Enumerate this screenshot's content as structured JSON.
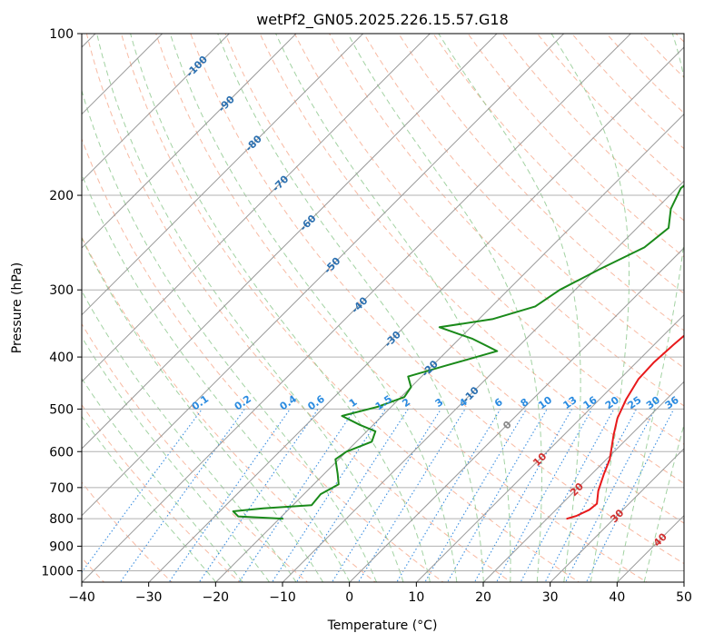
{
  "chart_data": {
    "type": "line",
    "title": "wetPf2_GN05.2025.226.15.57.G18",
    "xlabel": "Temperature (°C)",
    "ylabel": "Pressure (hPa)",
    "xlim": [
      -40,
      50
    ],
    "ylim": [
      1050,
      100
    ],
    "y_scale": "log",
    "grid": true,
    "x_ticks": [
      -40,
      -30,
      -20,
      -10,
      0,
      10,
      20,
      30,
      40,
      50
    ],
    "y_ticks": [
      100,
      200,
      300,
      400,
      500,
      600,
      700,
      800,
      900,
      1000
    ],
    "x_tick_labels": [
      "−40",
      "−30",
      "−20",
      "−10",
      "0",
      "10",
      "20",
      "30",
      "40",
      "50"
    ],
    "y_tick_labels": [
      "100",
      "200",
      "300",
      "400",
      "500",
      "600",
      "700",
      "800",
      "900",
      "1000"
    ],
    "colors": {
      "temperature": "#e8191b",
      "dewpoint": "#1a8a1a",
      "isotherm": "#999999",
      "dry_adiabat": "#f6a98c",
      "moist_adiabat": "#8bc78b",
      "mixing_ratio": "#3a8ee0",
      "isotherm_label": "#2a6fb0",
      "mixing_ratio_label": "#2a8be0",
      "adiabat_label": "#d03030",
      "zero_label": "#888888"
    },
    "series": [
      {
        "name": "",
        "role": "temperature",
        "points": [
          [
            23.0,
            800
          ],
          [
            24.0,
            790
          ],
          [
            25.0,
            770
          ],
          [
            25.2,
            750
          ],
          [
            23.5,
            710
          ],
          [
            21.8,
            660
          ],
          [
            20.5,
            620
          ],
          [
            17.5,
            560
          ],
          [
            15.5,
            520
          ],
          [
            14.0,
            480
          ],
          [
            12.8,
            440
          ],
          [
            12.6,
            410
          ],
          [
            12.9,
            380
          ],
          [
            13.3,
            355
          ],
          [
            12.7,
            330
          ],
          [
            11.6,
            300
          ],
          [
            9.3,
            262
          ],
          [
            5.6,
            228
          ],
          [
            3.2,
            200
          ],
          [
            3.0,
            182
          ],
          [
            3.7,
            160
          ],
          [
            4.2,
            145
          ],
          [
            3.7,
            128
          ],
          [
            4.2,
            116
          ],
          [
            5.8,
            106
          ],
          [
            6.8,
            100
          ]
        ]
      },
      {
        "name": "",
        "role": "dewpoint",
        "points": [
          [
            -19.5,
            800
          ],
          [
            -26.5,
            792
          ],
          [
            -28.0,
            775
          ],
          [
            -24.0,
            765
          ],
          [
            -17.2,
            755
          ],
          [
            -17.5,
            720
          ],
          [
            -16.3,
            690
          ],
          [
            -18.0,
            660
          ],
          [
            -20.5,
            620
          ],
          [
            -20.0,
            600
          ],
          [
            -17.7,
            575
          ],
          [
            -18.7,
            550
          ],
          [
            -22.0,
            535
          ],
          [
            -26.0,
            515
          ],
          [
            -22.0,
            495
          ],
          [
            -19.5,
            475
          ],
          [
            -20.0,
            455
          ],
          [
            -22.0,
            435
          ],
          [
            -18.0,
            415
          ],
          [
            -12.5,
            390
          ],
          [
            -18.0,
            370
          ],
          [
            -24.7,
            352
          ],
          [
            -18.0,
            340
          ],
          [
            -13.5,
            322
          ],
          [
            -12.3,
            300
          ],
          [
            -9.5,
            275
          ],
          [
            -6.0,
            250
          ],
          [
            -5.3,
            230
          ],
          [
            -7.8,
            212
          ],
          [
            -9.4,
            194
          ],
          [
            -8.5,
            175
          ],
          [
            -7.8,
            158
          ],
          [
            -6.0,
            143
          ],
          [
            -2.5,
            125
          ],
          [
            0.5,
            110
          ],
          [
            2.8,
            100
          ]
        ]
      }
    ],
    "isotherm_labels": [
      "-100",
      "-90",
      "-80",
      "-70",
      "-60",
      "-50",
      "-40",
      "-30",
      "-20",
      "-10",
      "0",
      "10",
      "20",
      "30",
      "40"
    ],
    "mixing_ratio_labels": [
      "0.1",
      "0.2",
      "0.4",
      "0.6",
      "1",
      "1.5",
      "2",
      "3",
      "4",
      "6",
      "8",
      "10",
      "13",
      "16",
      "20",
      "25",
      "30",
      "36"
    ],
    "mixing_ratio_values": [
      0.1,
      0.2,
      0.4,
      0.6,
      1,
      1.5,
      2,
      3,
      4,
      6,
      8,
      10,
      13,
      16,
      20,
      25,
      30,
      36
    ]
  }
}
